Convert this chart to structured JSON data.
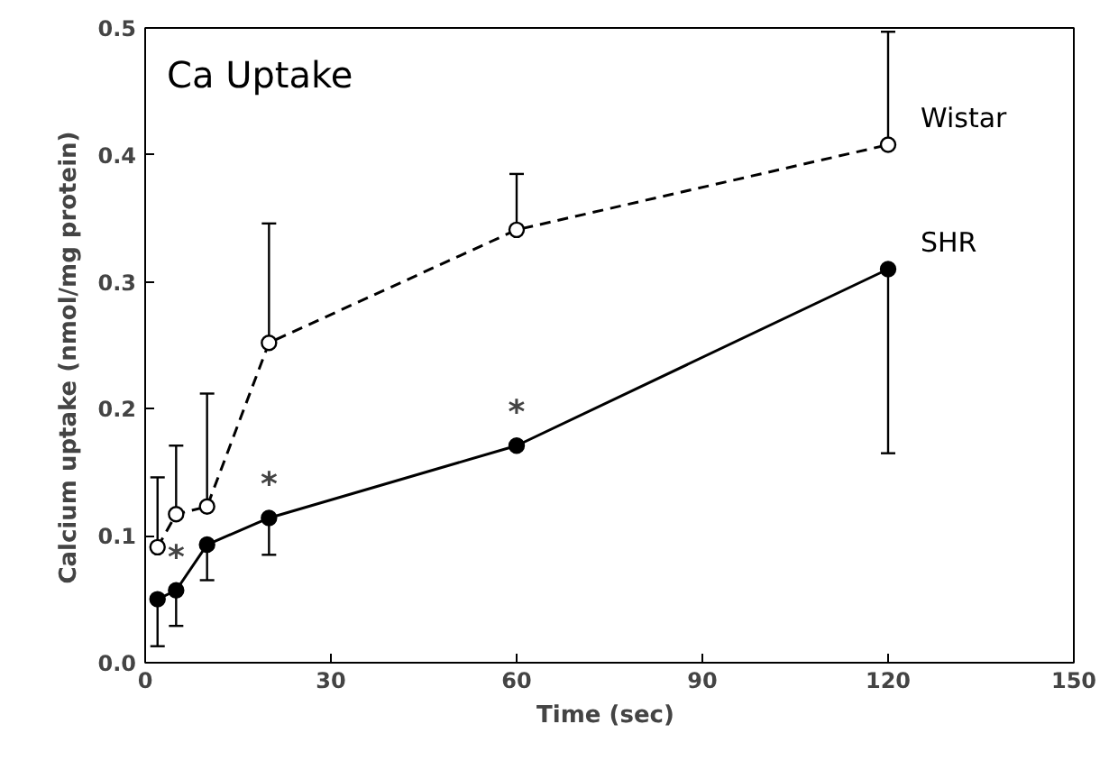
{
  "chart_data": {
    "type": "line",
    "title": "Ca   Uptake",
    "xlabel": "Time  (sec)",
    "ylabel": "Calcium  uptake  (nmol/mg  protein)",
    "x": [
      2,
      5,
      10,
      20,
      60,
      120
    ],
    "series": [
      {
        "name": "Wistar",
        "color": "#000000",
        "line_style": "dashed",
        "values": [
          0.091,
          0.117,
          0.123,
          0.252,
          0.341,
          0.408
        ],
        "errors": [
          [
            0.091,
            0.146
          ],
          [
            0.117,
            0.171
          ],
          [
            0.123,
            0.212
          ],
          [
            0.252,
            0.346
          ],
          [
            0.341,
            0.385
          ],
          [
            0.408,
            0.497
          ]
        ]
      },
      {
        "name": "SHR",
        "color": "#000000",
        "line_style": "solid",
        "values": [
          0.05,
          0.057,
          0.093,
          0.114,
          0.171,
          0.31
        ],
        "errors": [
          [
            0.013,
            0.05
          ],
          [
            0.029,
            0.057
          ],
          [
            0.065,
            0.093
          ],
          [
            0.085,
            0.114
          ],
          null,
          [
            0.165,
            0.31
          ]
        ]
      }
    ],
    "marker": "circle",
    "xlim": [
      0,
      150
    ],
    "xticks": [
      0,
      30,
      60,
      90,
      120,
      150
    ],
    "ylim": [
      0,
      0.5
    ],
    "yticks": [
      {
        "value": 0,
        "label": "0.0"
      },
      {
        "value": 0.1,
        "label": "0.1"
      },
      {
        "value": 0.2,
        "label": "0.2"
      },
      {
        "value": 0.3,
        "label": "0.3"
      },
      {
        "value": 0.4,
        "label": "0.4"
      },
      {
        "value": 0.5,
        "label": "0.5"
      }
    ],
    "grid": false,
    "annotations": [
      {
        "text": "*",
        "x": 5,
        "y": 0.057
      },
      {
        "text": "*",
        "x": 20,
        "y": 0.114
      },
      {
        "text": "*",
        "x": 60,
        "y": 0.171
      }
    ]
  }
}
